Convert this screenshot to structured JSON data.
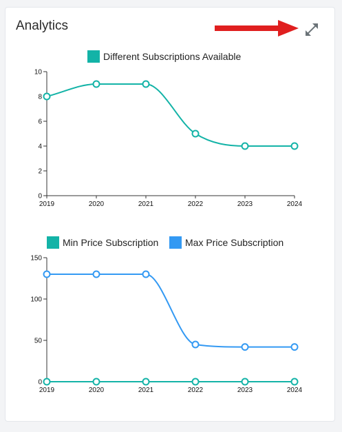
{
  "header": {
    "title": "Analytics",
    "expand_icon": "expand-arrows-icon",
    "annotation_arrow_color": "#e01f1f"
  },
  "colors": {
    "teal": "#13b3a7",
    "blue": "#3399f3"
  },
  "chart_data": [
    {
      "type": "line",
      "x": [
        "2019",
        "2020",
        "2021",
        "2022",
        "2023",
        "2024"
      ],
      "ylim": [
        0,
        10
      ],
      "yticks": [
        "0",
        "2",
        "4",
        "6",
        "8",
        "10"
      ],
      "series": [
        {
          "name": "Different Subscriptions Available",
          "color": "#13b3a7",
          "values": [
            8,
            9,
            9,
            5,
            4,
            4
          ]
        }
      ],
      "legend": "top-center"
    },
    {
      "type": "line",
      "x": [
        "2019",
        "2020",
        "2021",
        "2022",
        "2023",
        "2024"
      ],
      "ylim": [
        0,
        150
      ],
      "yticks": [
        "0",
        "50",
        "100",
        "150"
      ],
      "series": [
        {
          "name": "Min Price Subscription",
          "color": "#13b3a7",
          "values": [
            0,
            0,
            0,
            0,
            0,
            0
          ]
        },
        {
          "name": "Max Price Subscription",
          "color": "#3399f3",
          "values": [
            130,
            130,
            130,
            45,
            42,
            42
          ]
        }
      ],
      "legend": "top-center"
    }
  ]
}
